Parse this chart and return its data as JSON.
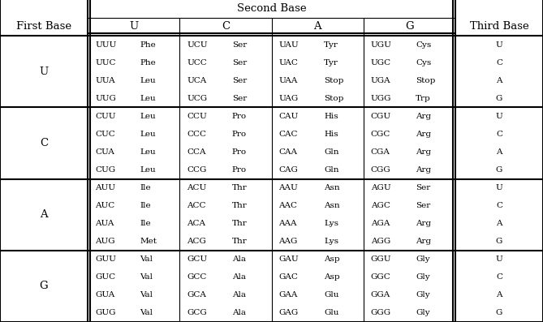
{
  "header_second_base": "Second Base",
  "header_first_base": "First Base",
  "header_third_base": "Third Base",
  "second_base_labels": [
    "U",
    "C",
    "A",
    "G"
  ],
  "first_base_labels": [
    "U",
    "C",
    "A",
    "G"
  ],
  "third_base_labels": [
    "U",
    "C",
    "A",
    "G"
  ],
  "codons": [
    [
      "UUU",
      "Phe",
      "UCU",
      "Ser",
      "UAU",
      "Tyr",
      "UGU",
      "Cys"
    ],
    [
      "UUC",
      "Phe",
      "UCC",
      "Ser",
      "UAC",
      "Tyr",
      "UGC",
      "Cys"
    ],
    [
      "UUA",
      "Leu",
      "UCA",
      "Ser",
      "UAA",
      "Stop",
      "UGA",
      "Stop"
    ],
    [
      "UUG",
      "Leu",
      "UCG",
      "Ser",
      "UAG",
      "Stop",
      "UGG",
      "Trp"
    ],
    [
      "CUU",
      "Leu",
      "CCU",
      "Pro",
      "CAU",
      "His",
      "CGU",
      "Arg"
    ],
    [
      "CUC",
      "Leu",
      "CCC",
      "Pro",
      "CAC",
      "His",
      "CGC",
      "Arg"
    ],
    [
      "CUA",
      "Leu",
      "CCA",
      "Pro",
      "CAA",
      "Gln",
      "CGA",
      "Arg"
    ],
    [
      "CUG",
      "Leu",
      "CCG",
      "Pro",
      "CAG",
      "Gln",
      "CGG",
      "Arg"
    ],
    [
      "AUU",
      "Ile",
      "ACU",
      "Thr",
      "AAU",
      "Asn",
      "AGU",
      "Ser"
    ],
    [
      "AUC",
      "Ile",
      "ACC",
      "Thr",
      "AAC",
      "Asn",
      "AGC",
      "Ser"
    ],
    [
      "AUA",
      "Ile",
      "ACA",
      "Thr",
      "AAA",
      "Lys",
      "AGA",
      "Arg"
    ],
    [
      "AUG",
      "Met",
      "ACG",
      "Thr",
      "AAG",
      "Lys",
      "AGG",
      "Arg"
    ],
    [
      "GUU",
      "Val",
      "GCU",
      "Ala",
      "GAU",
      "Asp",
      "GGU",
      "Gly"
    ],
    [
      "GUC",
      "Val",
      "GCC",
      "Ala",
      "GAC",
      "Asp",
      "GGC",
      "Gly"
    ],
    [
      "GUA",
      "Val",
      "GCA",
      "Ala",
      "GAA",
      "Glu",
      "GGA",
      "Gly"
    ],
    [
      "GUG",
      "Val",
      "GCG",
      "Ala",
      "GAG",
      "Glu",
      "GGG",
      "Gly"
    ]
  ],
  "bg_color": "white",
  "text_color": "black",
  "line_color": "black",
  "font_size": 7.5,
  "header_font_size": 9.5,
  "figsize": [
    6.69,
    3.97
  ],
  "dpi": 100
}
